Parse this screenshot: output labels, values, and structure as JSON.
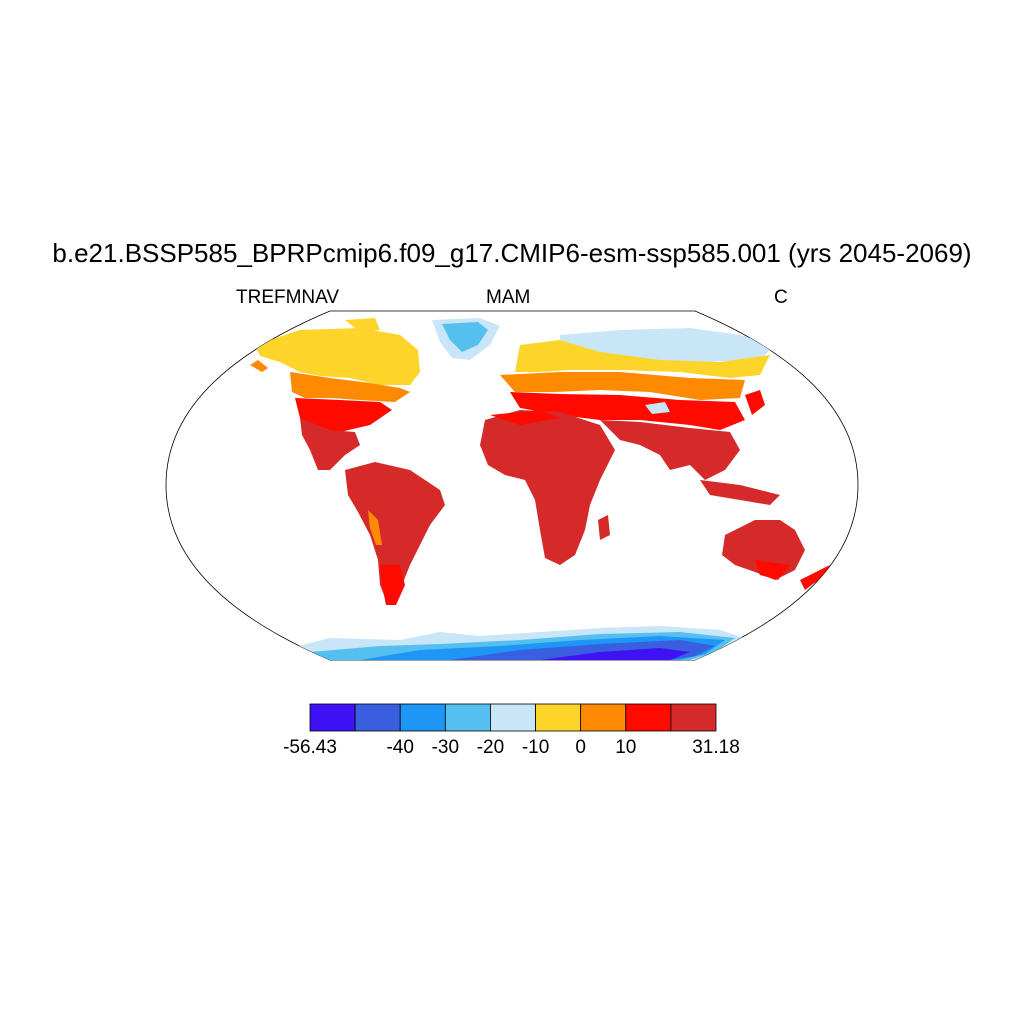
{
  "title": "b.e21.BSSP585_BPRPcmip6.f09_g17.CMIP6-esm-ssp585.001 (yrs 2045-2069)",
  "left_label": "TREFMNAV",
  "center_label": "MAM",
  "right_label": "C",
  "colorbar": {
    "colors": [
      "#3f12f5",
      "#3a5ee0",
      "#1e96f5",
      "#55c0f0",
      "#c8e6f7",
      "#fdd52a",
      "#fd8a00",
      "#fe0a00",
      "#d62a2a"
    ],
    "labels": [
      "-56.43",
      "-40",
      "-30",
      "-20",
      "-10",
      "0",
      "10",
      "31.18"
    ],
    "label_boundaries": [
      0,
      2,
      3,
      4,
      5,
      6,
      7,
      9
    ]
  },
  "map_regions": [
    {
      "name": "north-america",
      "bands": [
        "#fdd52a",
        "#fd8a00",
        "#fe0a00",
        "#d62a2a"
      ]
    },
    {
      "name": "greenland",
      "bands": [
        "#55c0f0",
        "#c8e6f7"
      ]
    },
    {
      "name": "south-america",
      "bands": [
        "#d62a2a",
        "#fd8a00",
        "#fe0a00"
      ]
    },
    {
      "name": "eurasia",
      "bands": [
        "#c8e6f7",
        "#fdd52a",
        "#fd8a00",
        "#fe0a00",
        "#d62a2a"
      ]
    },
    {
      "name": "africa",
      "bands": [
        "#d62a2a"
      ]
    },
    {
      "name": "australia",
      "bands": [
        "#d62a2a",
        "#fe0a00"
      ]
    },
    {
      "name": "antarctica",
      "bands": [
        "#c8e6f7",
        "#55c0f0",
        "#1e96f5",
        "#3a5ee0",
        "#3f12f5"
      ]
    }
  ]
}
